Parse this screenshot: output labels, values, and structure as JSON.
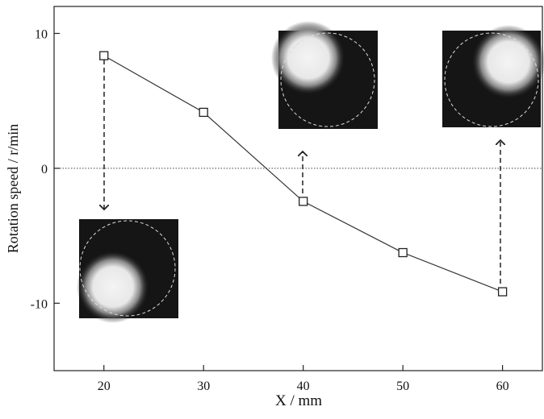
{
  "chart_data": {
    "type": "line",
    "x_label": "X / mm",
    "y_label": "Rotation speed / r/min",
    "x": [
      20,
      30,
      40,
      50,
      60
    ],
    "series": [
      {
        "values": [
          8.35,
          4.15,
          -2.45,
          -6.25,
          -9.15
        ],
        "color": "#333333"
      }
    ],
    "xlim": [
      15,
      64
    ],
    "ylim": [
      -15,
      12
    ],
    "xticks": [
      20,
      30,
      40,
      50,
      60
    ],
    "yticks": [
      -10,
      0,
      10
    ],
    "zero_line": true,
    "marker": "square"
  }
}
